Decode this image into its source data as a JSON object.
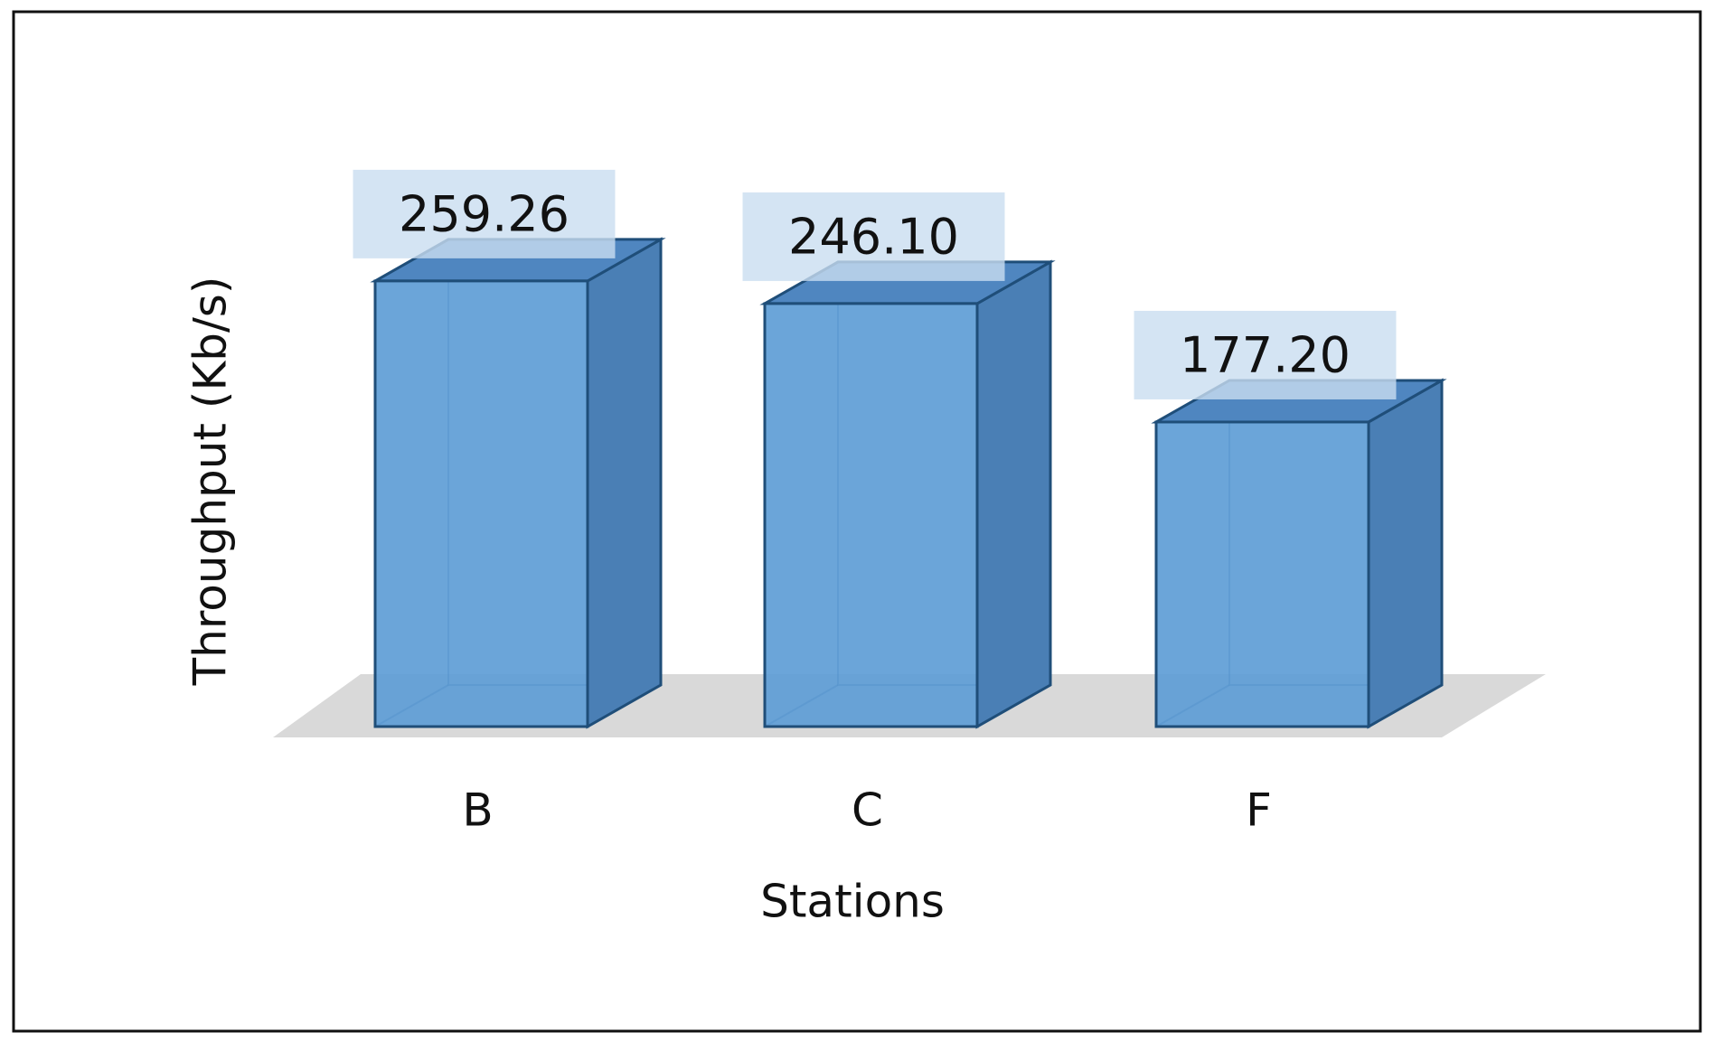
{
  "chart_data": {
    "type": "bar3d",
    "x_label": "Stations",
    "y_label": "Throughput (Kb/s)",
    "categories": [
      "B",
      "C",
      "F"
    ],
    "values": [
      259.26,
      246.1,
      177.2
    ],
    "value_labels": [
      "259.26",
      "246.10",
      "177.20"
    ],
    "color": "#5b9bd5"
  }
}
